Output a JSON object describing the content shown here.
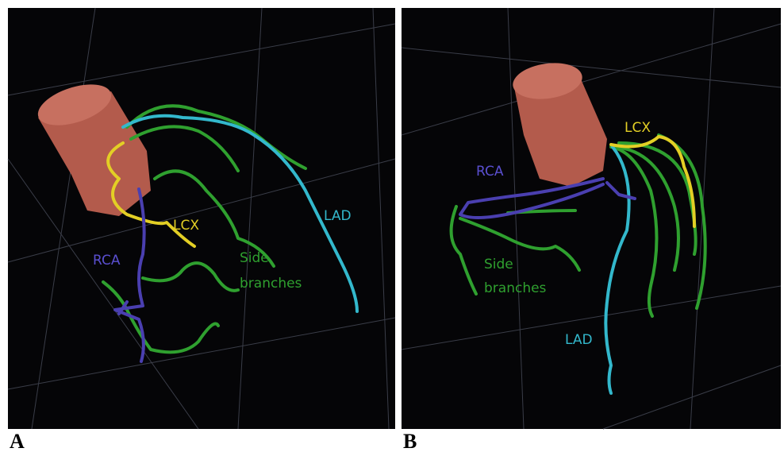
{
  "panels": [
    {
      "label": "A",
      "annotations": {
        "lcx": "LCX",
        "rca": "RCA",
        "lad": "LAD",
        "side": [
          "Side",
          "branches"
        ]
      }
    },
    {
      "label": "B",
      "annotations": {
        "lcx": "LCX",
        "rca": "RCA",
        "lad": "LAD",
        "side": [
          "Side",
          "branches"
        ]
      }
    }
  ]
}
